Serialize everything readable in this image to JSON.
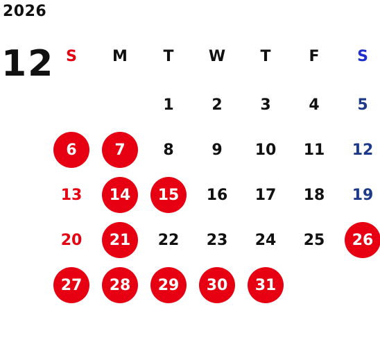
{
  "calendar": {
    "year": "2026",
    "month": "12",
    "weekdays": [
      "S",
      "M",
      "T",
      "W",
      "T",
      "F",
      "S"
    ],
    "weeks": [
      [
        "",
        "",
        "1",
        "2",
        "3",
        "4",
        "5"
      ],
      [
        "6",
        "7",
        "8",
        "9",
        "10",
        "11",
        "12"
      ],
      [
        "13",
        "14",
        "15",
        "16",
        "17",
        "18",
        "19"
      ],
      [
        "20",
        "21",
        "22",
        "23",
        "24",
        "25",
        "26"
      ],
      [
        "27",
        "28",
        "29",
        "30",
        "31",
        "",
        ""
      ]
    ],
    "highlighted_days": [
      "6",
      "7",
      "14",
      "15",
      "21",
      "26",
      "27",
      "28",
      "29",
      "30",
      "31"
    ],
    "colors": {
      "sunday": "#e60012",
      "saturday_header": "#1f2fd0",
      "saturday": "#1d3a8a",
      "highlight": "#e60012",
      "text": "#111111"
    }
  }
}
